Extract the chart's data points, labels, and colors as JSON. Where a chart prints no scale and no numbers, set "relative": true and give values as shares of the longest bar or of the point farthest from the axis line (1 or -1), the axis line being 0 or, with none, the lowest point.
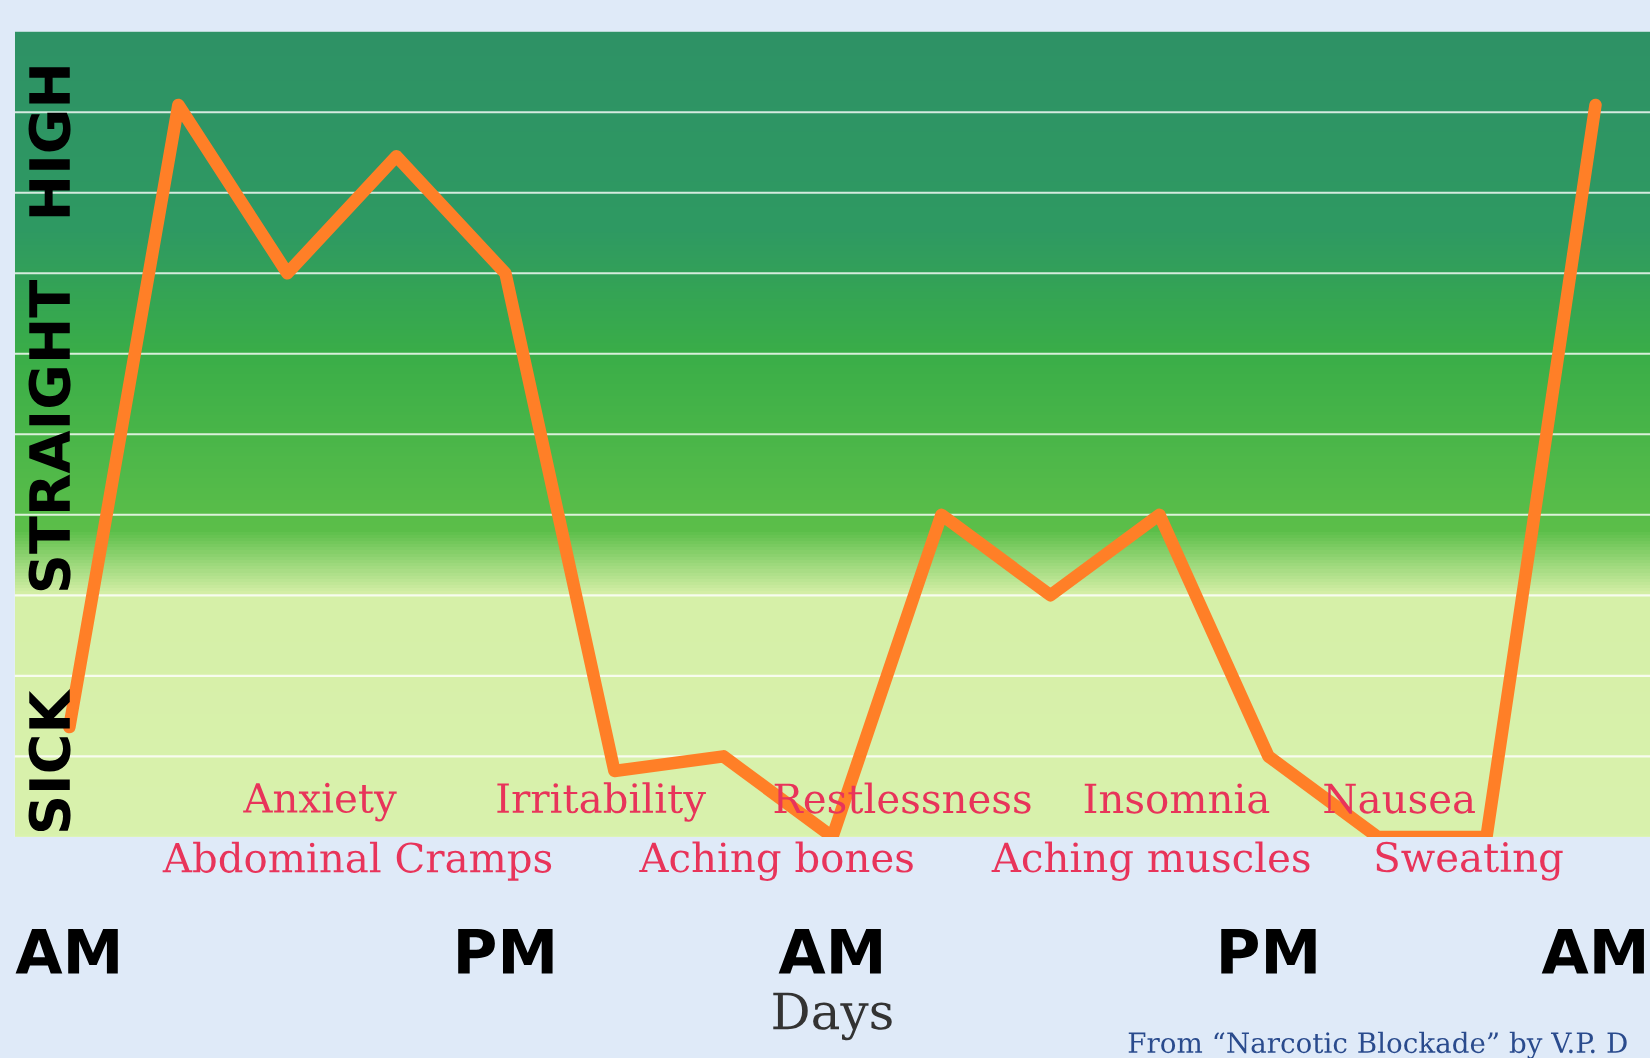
{
  "chart_data": {
    "type": "line",
    "xlabel": "Days",
    "relative": true,
    "categories": [
      "AM",
      null,
      null,
      null,
      "PM",
      null,
      null,
      "AM",
      null,
      null,
      null,
      "PM",
      null,
      null,
      "AM"
    ],
    "series": [
      {
        "color": "#ff7f27",
        "values": [
          0.15,
          1,
          0.77,
          0.93,
          0.77,
          0.09,
          0.11,
          0,
          0.44,
          0.33,
          0.44,
          0.11,
          0,
          0,
          1
        ]
      }
    ],
    "grid": "y",
    "line_style": "solid",
    "legend": false,
    "annotations": [
      "HIGH",
      "STRAIGHT",
      "SICK",
      "Anxiety",
      "Irritability",
      "Restlessness",
      "Insomnia",
      "Nausea",
      "Abdominal Cramps",
      "Aching bones",
      "Aching muscles",
      "Sweating",
      "From “Narcotic Blockade” by V.P. D"
    ]
  }
}
